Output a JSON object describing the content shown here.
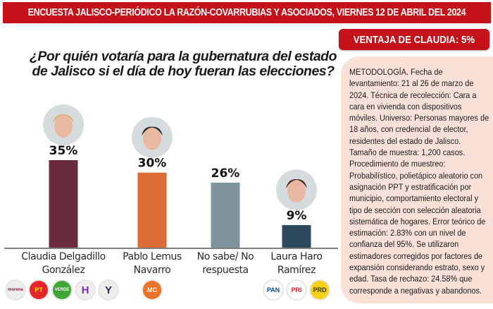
{
  "header": {
    "title": "ENCUESTA JALISCO-PERIÓDICO LA RAZÓN-COVARRUBIAS Y ASOCIADOS, VIERNES 12 DE ABRIL DEL 2024"
  },
  "advantage": {
    "label": "VENTAJA DE CLAUDIA: 5%"
  },
  "methodology": {
    "text": "METODOLOGÍA. Fecha de levantamiento: 21 al 26 de marzo de 2024. Técnica de recolección: Cara a cara en vivienda con dispositivos móviles. Universo: Personas mayores de 18 años, con credencial de elector, residentes del estado de Jalisco. Tamaño de muestra: 1,200 casos. Procedimiento de muestreo: Probabilístico, polietápico aleatorio con asignación PPT y estratificación por municipio, comportamiento electoral y tipo de sección con selección aleatoria sistemática de hogares. Error teórico de estimación: 2.83% con un nivel de confianza del 95%. Se utilizaron estimadores corregidos por factores de expansión considerando estrato, sexo y edad. Tasa de rechazo: 24.58% que corresponde a negativas y abandonos."
  },
  "chart_data": {
    "type": "bar",
    "title": "¿Por quién votaría para la gubernatura del estado de Jalisco si el día de hoy fueran las elecciones?",
    "xlabel": "",
    "ylabel": "",
    "ylim": [
      0,
      35
    ],
    "grid": false,
    "categories": [
      "Claudia Delgadillo González",
      "Pablo Lemus Navarro",
      "No sabe/ No respuesta",
      "Laura Haro Ramírez"
    ],
    "category_lines": [
      [
        "Claudia Delgadillo",
        "González"
      ],
      [
        "Pablo Lemus",
        "Navarro"
      ],
      [
        "No sabe/ No",
        "respuesta"
      ],
      [
        "Laura Haro",
        "Ramírez"
      ]
    ],
    "values": [
      35,
      30,
      26,
      9
    ],
    "data_labels": [
      "35%",
      "30%",
      "26%",
      "9%"
    ],
    "colors": [
      "#6b2d3e",
      "#db6a34",
      "#7e939c",
      "#2b4a5e"
    ],
    "has_photo": [
      true,
      true,
      false,
      true
    ]
  },
  "party_logos": {
    "claudia": [
      {
        "name": "morena",
        "label": "morena",
        "bg": "#eeeeee",
        "fg": "#8a1538"
      },
      {
        "name": "pt",
        "label": "PT",
        "bg": "#e8242b",
        "fg": "#ffdd00"
      },
      {
        "name": "verde",
        "label": "VERDE",
        "bg": "#3fa535",
        "fg": "#ffffff"
      },
      {
        "name": "hagamos",
        "label": "H",
        "bg": "#eeeeee",
        "fg": "#7b2cbf"
      },
      {
        "name": "futuro",
        "label": "Y",
        "bg": "#eeeeee",
        "fg": "#2a2a6a"
      }
    ],
    "pablo": [
      {
        "name": "movimiento-ciudadano",
        "label": "MC",
        "bg": "#e9742a",
        "fg": "#ffffff"
      }
    ],
    "laura": [
      {
        "name": "pan",
        "label": "PAN",
        "bg": "#ffffff",
        "fg": "#0b4ea2"
      },
      {
        "name": "pri",
        "label": "PRI",
        "bg": "#ffffff",
        "fg": "#d1202f"
      },
      {
        "name": "prd",
        "label": "PRD",
        "bg": "#f7d117",
        "fg": "#333333"
      }
    ]
  }
}
